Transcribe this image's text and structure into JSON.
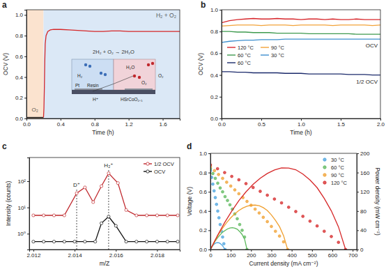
{
  "chart_data": [
    {
      "type": "line",
      "title": "a",
      "x_label": "Time (h)",
      "y_label": "OCV (V)",
      "xlim": [
        0,
        1.8
      ],
      "xticks": [
        {
          "value": 0,
          "label": "0.0"
        },
        0.4,
        0.8,
        1.2,
        1.6
      ],
      "ylim": [
        0,
        1.05
      ],
      "yticks": [
        {
          "value": 0,
          "label": "0.0"
        },
        0.2,
        0.4,
        0.6,
        0.8,
        {
          "value": 1,
          "label": "1.0"
        }
      ],
      "regions": [
        {
          "x0": 0,
          "x1": 0.2,
          "label": "O₂",
          "color": "#fbe3cf"
        },
        {
          "x0": 0.2,
          "x1": 1.8,
          "label": "H₂ + O₂",
          "color": "#dbe8f6"
        }
      ],
      "series": [
        {
          "color": "#111111",
          "x": [
            0,
            0.05,
            0.1,
            0.15,
            0.2
          ],
          "values": [
            0.01,
            0.01,
            0.01,
            0.01,
            0.01
          ]
        },
        {
          "color": "#d62728",
          "x": [
            0.2,
            0.205,
            0.21,
            0.215,
            0.22,
            0.23,
            0.25,
            0.28,
            0.32,
            0.4,
            0.5,
            0.6,
            0.7,
            0.8,
            0.9,
            1.0,
            1.1,
            1.2,
            1.3,
            1.4,
            1.5,
            1.6,
            1.7,
            1.8
          ],
          "values": [
            0.01,
            0.1,
            0.3,
            0.55,
            0.72,
            0.8,
            0.84,
            0.855,
            0.86,
            0.86,
            0.855,
            0.85,
            0.845,
            0.84,
            0.84,
            0.845,
            0.845,
            0.84,
            0.84,
            0.84,
            0.84,
            0.84,
            0.84,
            0.84
          ]
        }
      ],
      "inset": {
        "text": "2H₂ + O₂ → 2H₂O",
        "labels": [
          "H₂",
          "O₂",
          "H⁺",
          "Pt",
          "Resin",
          "H₂O",
          "O₂",
          "HSrCoO₂.₅"
        ]
      }
    },
    {
      "type": "line",
      "title": "b",
      "x_label": "Time (h)",
      "y_label": "OCV (V)",
      "xlim": [
        0,
        2
      ],
      "xticks": [
        {
          "value": 0,
          "label": "0.0"
        },
        0.5,
        {
          "value": 1,
          "label": "1.0"
        },
        1.5,
        {
          "value": 2,
          "label": "2.0"
        }
      ],
      "ylim": [
        0,
        1
      ],
      "yticks": [
        {
          "value": 0,
          "label": "0.0"
        },
        0.2,
        0.4,
        0.6,
        0.8,
        {
          "value": 1,
          "label": "1.0"
        }
      ],
      "legend": "center left",
      "x": [
        0,
        0.1,
        0.2,
        0.3,
        0.4,
        0.5,
        0.6,
        0.7,
        0.8,
        0.9,
        1.0,
        1.1,
        1.2,
        1.3,
        1.4,
        1.5,
        1.6,
        1.7,
        1.8,
        1.9,
        2.0
      ],
      "series": [
        {
          "name": "120 °C",
          "color": "#d7262b",
          "values": [
            0.88,
            0.9,
            0.91,
            0.915,
            0.92,
            0.915,
            0.915,
            0.92,
            0.915,
            0.915,
            0.91,
            0.915,
            0.915,
            0.91,
            0.915,
            0.91,
            0.91,
            0.915,
            0.91,
            0.91,
            0.91
          ]
        },
        {
          "name": "90 °C",
          "color": "#f2a33a",
          "values": [
            0.85,
            0.855,
            0.86,
            0.86,
            0.86,
            0.855,
            0.86,
            0.86,
            0.86,
            0.855,
            0.86,
            0.86,
            0.86,
            0.86,
            0.855,
            0.86,
            0.86,
            0.86,
            0.86,
            0.855,
            0.86
          ]
        },
        {
          "name": "60 °C",
          "color": "#3f9a4f",
          "values": [
            0.8,
            0.8,
            0.795,
            0.795,
            0.79,
            0.79,
            0.79,
            0.785,
            0.785,
            0.785,
            0.785,
            0.78,
            0.78,
            0.78,
            0.78,
            0.78,
            0.78,
            0.775,
            0.775,
            0.775,
            0.775
          ]
        },
        {
          "name": "30 °C",
          "color": "#3d8fce",
          "values": [
            0.7,
            0.71,
            0.715,
            0.72,
            0.72,
            0.725,
            0.725,
            0.725,
            0.73,
            0.73,
            0.73,
            0.73,
            0.73,
            0.73,
            0.73,
            0.73,
            0.73,
            0.73,
            0.73,
            0.73,
            0.73
          ]
        },
        {
          "name": "60 °C",
          "color": "#1b2a6b",
          "values": [
            0.43,
            0.43,
            0.425,
            0.425,
            0.42,
            0.42,
            0.42,
            0.42,
            0.415,
            0.415,
            0.415,
            0.41,
            0.41,
            0.41,
            0.41,
            0.41,
            0.405,
            0.405,
            0.405,
            0.4,
            0.4
          ]
        }
      ],
      "annotations": [
        {
          "text": "OCV"
        },
        {
          "text": "1/2 OCV"
        }
      ]
    },
    {
      "type": "line",
      "title": "c",
      "x_label": "m/Z",
      "y_label": "Intensity (counts)",
      "log": "y",
      "marker": "circle",
      "legend": "upper right",
      "xlim": [
        2.0118,
        2.0191
      ],
      "xticks": [
        2.012,
        2.014,
        2.016,
        2.018
      ],
      "ylim": [
        0.25,
        800
      ],
      "yticks": [
        {
          "value": 1,
          "label": "10⁰"
        },
        {
          "value": 10,
          "label": "10¹"
        },
        {
          "value": 100,
          "label": "10²"
        }
      ],
      "series": [
        {
          "name": "1/2 OCV",
          "color": "#c0282d",
          "x": [
            2.012,
            2.0125,
            2.013,
            2.0135,
            2.0141,
            2.0145,
            2.0149,
            2.0153,
            2.01565,
            2.0161,
            2.0165,
            2.017,
            2.0175,
            2.018,
            2.0185,
            2.019
          ],
          "values": [
            5,
            5,
            5,
            5,
            35,
            58,
            16,
            65,
            200,
            85,
            8,
            5,
            5,
            5,
            5,
            5
          ]
        },
        {
          "name": "OCV",
          "color": "#111111",
          "x": [
            2.012,
            2.0125,
            2.013,
            2.0135,
            2.014,
            2.0145,
            2.015,
            2.0153,
            2.01565,
            2.016,
            2.0165,
            2.017,
            2.0175,
            2.018,
            2.0185,
            2.019
          ],
          "values": [
            0.5,
            0.5,
            0.5,
            0.5,
            0.5,
            0.5,
            0.5,
            2.5,
            4.5,
            2,
            0.5,
            0.5,
            0.5,
            0.5,
            0.5,
            0.5
          ]
        }
      ],
      "annotations": [
        {
          "text": "D⁺",
          "x": 2.0141
        },
        {
          "text": "H₂⁺",
          "x": 2.01565
        }
      ]
    },
    {
      "type": "scatter",
      "title": "d",
      "x_label": "Current density (mA cm⁻²)",
      "y_label": "Voltage (V)",
      "y2_label": "Power density (mW cm⁻²)",
      "legend": "upper right",
      "xlim": [
        0,
        720
      ],
      "xticks": [
        0,
        100,
        200,
        300,
        400,
        500,
        600,
        700
      ],
      "ylim": [
        0,
        1
      ],
      "yticks": [
        {
          "value": 0,
          "label": "0.0"
        },
        0.2,
        0.4,
        0.6,
        0.8,
        {
          "value": 1,
          "label": "1.0"
        }
      ],
      "y2lim": [
        0,
        200
      ],
      "y2ticks": [
        0,
        40,
        80,
        120,
        160,
        200
      ],
      "series": [
        {
          "name": "30 °C",
          "type": "scatter",
          "marker": "circle",
          "color": "#4aa3df",
          "x": [
            0,
            6,
            12,
            18,
            24,
            30,
            36,
            42,
            48,
            54,
            60,
            66,
            72
          ],
          "values": [
            0.82,
            0.75,
            0.68,
            0.61,
            0.54,
            0.47,
            0.4,
            0.33,
            0.26,
            0.19,
            0.13,
            0.06,
            0.0
          ]
        },
        {
          "name": "60 °C",
          "type": "scatter",
          "marker": "circle",
          "color": "#5cb85c",
          "x": [
            0,
            12,
            24,
            36,
            48,
            60,
            72,
            84,
            96,
            108,
            120,
            132,
            144,
            156,
            168,
            180
          ],
          "values": [
            0.84,
            0.79,
            0.74,
            0.69,
            0.64,
            0.6,
            0.55,
            0.51,
            0.465,
            0.42,
            0.37,
            0.32,
            0.26,
            0.2,
            0.13,
            0.0
          ]
        },
        {
          "name": "90 °C",
          "type": "scatter",
          "marker": "circle",
          "color": "#f0a030",
          "x": [
            0,
            20,
            40,
            60,
            80,
            100,
            120,
            140,
            160,
            180,
            200,
            220,
            240,
            260,
            280,
            300,
            320,
            340,
            360,
            380
          ],
          "values": [
            0.86,
            0.82,
            0.78,
            0.74,
            0.7,
            0.66,
            0.62,
            0.58,
            0.54,
            0.5,
            0.46,
            0.42,
            0.38,
            0.335,
            0.29,
            0.24,
            0.19,
            0.14,
            0.08,
            0.0
          ]
        },
        {
          "name": "120 °C",
          "type": "scatter",
          "marker": "circle",
          "color": "#d62728",
          "x": [
            0,
            35,
            70,
            105,
            140,
            175,
            210,
            245,
            280,
            315,
            350,
            385,
            420,
            455,
            490,
            525,
            560,
            595,
            630,
            665
          ],
          "values": [
            0.88,
            0.84,
            0.8,
            0.76,
            0.725,
            0.685,
            0.645,
            0.605,
            0.565,
            0.525,
            0.485,
            0.44,
            0.395,
            0.345,
            0.295,
            0.245,
            0.19,
            0.135,
            0.075,
            0.0
          ]
        },
        {
          "type": "line",
          "axis": "y2",
          "color": "#4aa3df",
          "x": [
            0,
            6,
            12,
            18,
            24,
            30,
            36,
            42,
            48,
            54,
            60,
            66,
            72
          ],
          "values": [
            0,
            4.5,
            8.2,
            11,
            13,
            14.1,
            14.4,
            13.9,
            12.5,
            10.3,
            7.8,
            4,
            0
          ]
        },
        {
          "type": "line",
          "axis": "y2",
          "color": "#5cb85c",
          "x": [
            0,
            12,
            24,
            36,
            48,
            60,
            72,
            84,
            96,
            108,
            120,
            132,
            144,
            156,
            168,
            180
          ],
          "values": [
            0,
            9.5,
            17.8,
            24.8,
            30.7,
            36,
            39.6,
            42.8,
            44.6,
            45.4,
            44.4,
            42.2,
            37.4,
            31.2,
            21.8,
            0
          ]
        },
        {
          "type": "line",
          "axis": "y2",
          "color": "#f0a030",
          "x": [
            0,
            20,
            40,
            60,
            80,
            100,
            120,
            140,
            160,
            180,
            200,
            220,
            240,
            260,
            280,
            300,
            320,
            340,
            360,
            380
          ],
          "values": [
            0,
            16.4,
            31.2,
            44.4,
            56,
            66,
            74.4,
            81.2,
            86.4,
            90,
            92,
            92.4,
            91.2,
            87.1,
            81.2,
            72,
            60.8,
            47.6,
            28.8,
            0
          ]
        },
        {
          "type": "line",
          "axis": "y2",
          "color": "#d62728",
          "x": [
            0,
            35,
            70,
            105,
            140,
            175,
            210,
            245,
            280,
            315,
            350,
            385,
            420,
            455,
            490,
            525,
            560,
            595,
            630,
            665
          ],
          "values": [
            0,
            29.4,
            56,
            79.8,
            101.5,
            119.9,
            135.5,
            148.2,
            158.2,
            165.4,
            169.8,
            169.4,
            165.9,
            157,
            144.6,
            128.6,
            106.4,
            80.3,
            47.3,
            0
          ]
        }
      ]
    }
  ]
}
